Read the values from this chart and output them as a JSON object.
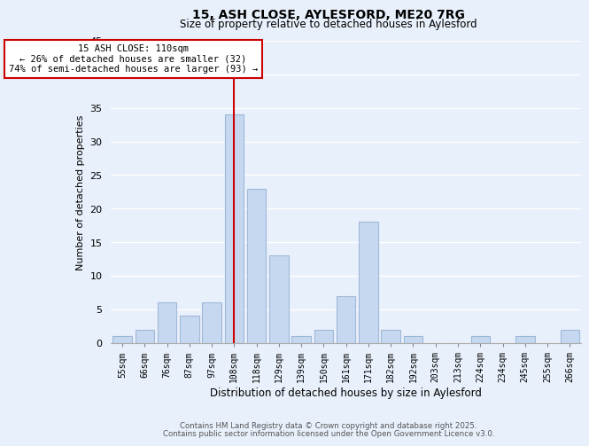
{
  "title1": "15, ASH CLOSE, AYLESFORD, ME20 7RG",
  "title2": "Size of property relative to detached houses in Aylesford",
  "xlabel": "Distribution of detached houses by size in Aylesford",
  "ylabel": "Number of detached properties",
  "bins": [
    "55sqm",
    "66sqm",
    "76sqm",
    "87sqm",
    "97sqm",
    "108sqm",
    "118sqm",
    "129sqm",
    "139sqm",
    "150sqm",
    "161sqm",
    "171sqm",
    "182sqm",
    "192sqm",
    "203sqm",
    "213sqm",
    "224sqm",
    "234sqm",
    "245sqm",
    "255sqm",
    "266sqm"
  ],
  "values": [
    1,
    2,
    6,
    4,
    6,
    34,
    23,
    13,
    1,
    2,
    7,
    18,
    2,
    1,
    0,
    0,
    1,
    0,
    1,
    0,
    2
  ],
  "bar_color": "#c5d8f0",
  "bar_edge_color": "#a0b8d8",
  "bg_color": "#e8f0fb",
  "grid_color": "#ffffff",
  "red_line_index": 5,
  "red_line_color": "#cc0000",
  "annotation_line1": "15 ASH CLOSE: 110sqm",
  "annotation_line2": "← 26% of detached houses are smaller (32)",
  "annotation_line3": "74% of semi-detached houses are larger (93) →",
  "annotation_box_color": "#ffffff",
  "annotation_box_edge": "#cc0000",
  "ylim": [
    0,
    45
  ],
  "yticks": [
    0,
    5,
    10,
    15,
    20,
    25,
    30,
    35,
    40,
    45
  ],
  "footnote1": "Contains HM Land Registry data © Crown copyright and database right 2025.",
  "footnote2": "Contains public sector information licensed under the Open Government Licence v3.0."
}
